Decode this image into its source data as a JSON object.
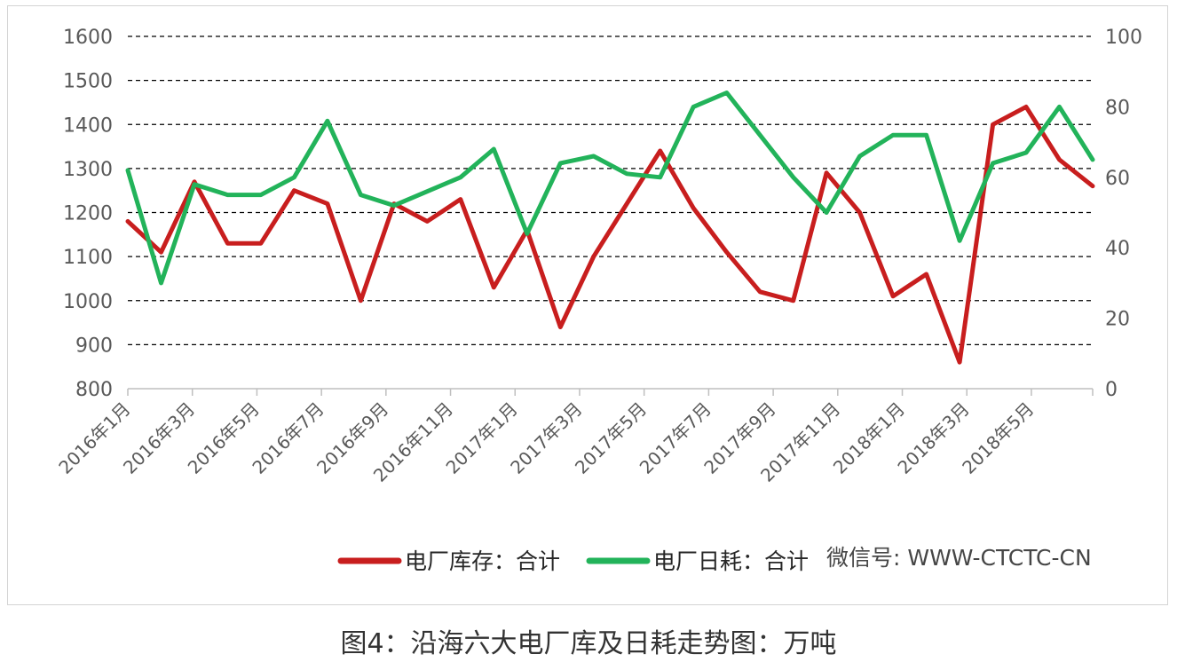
{
  "caption": "图4：沿海六大电厂库及日耗走势图：万吨",
  "watermark": "微信号: WWW-CTCTC-CN",
  "colors": {
    "stock": "#c81e1e",
    "consumption": "#22b35a",
    "grid": "#000000",
    "axis": "#bfbfbf"
  },
  "chart_data": {
    "type": "line",
    "title": "",
    "xlabel": "",
    "ylabel": "",
    "grid": true,
    "legend_position": "bottom",
    "y_left": {
      "min": 800,
      "max": 1600,
      "ticks": [
        800,
        900,
        1000,
        1100,
        1200,
        1300,
        1400,
        1500,
        1600
      ]
    },
    "y_right": {
      "min": 0,
      "max": 100,
      "ticks": [
        0,
        20,
        40,
        60,
        80,
        100
      ]
    },
    "x_tick_labels": [
      "2016年1月",
      "2016年3月",
      "2016年5月",
      "2016年7月",
      "2016年9月",
      "2016年11月",
      "2017年1月",
      "2017年3月",
      "2017年5月",
      "2017年7月",
      "2017年9月",
      "2017年11月",
      "2018年1月",
      "2018年3月",
      "2018年5月"
    ],
    "x_start": "2016-01",
    "x_end": "2018-06",
    "series": [
      {
        "name": "电厂库存：合计",
        "axis": "left",
        "color": "#c81e1e",
        "x": [
          "2016-01",
          "2016-02",
          "2016-03",
          "2016-04",
          "2016-05",
          "2016-06",
          "2016-07",
          "2016-08",
          "2016-09",
          "2016-10",
          "2016-11",
          "2016-12",
          "2017-01",
          "2017-02",
          "2017-03",
          "2017-04",
          "2017-05",
          "2017-06",
          "2017-07",
          "2017-08",
          "2017-09",
          "2017-10",
          "2017-11",
          "2017-12",
          "2018-01",
          "2018-02",
          "2018-03",
          "2018-04",
          "2018-05",
          "2018-06"
        ],
        "values": [
          1180,
          1110,
          1270,
          1130,
          1130,
          1250,
          1220,
          1000,
          1220,
          1180,
          1230,
          1030,
          1160,
          940,
          1100,
          1220,
          1340,
          1210,
          1110,
          1020,
          1000,
          1290,
          1200,
          1010,
          1060,
          860,
          1400,
          1440,
          1320,
          1260
        ]
      },
      {
        "name": "电厂日耗：合计",
        "axis": "right",
        "color": "#22b35a",
        "x": [
          "2016-01",
          "2016-02",
          "2016-03",
          "2016-04",
          "2016-05",
          "2016-06",
          "2016-07",
          "2016-08",
          "2016-09",
          "2016-10",
          "2016-11",
          "2016-12",
          "2017-01",
          "2017-02",
          "2017-03",
          "2017-04",
          "2017-05",
          "2017-06",
          "2017-07",
          "2017-08",
          "2017-09",
          "2017-10",
          "2017-11",
          "2017-12",
          "2018-01",
          "2018-02",
          "2018-03",
          "2018-04",
          "2018-05",
          "2018-06"
        ],
        "values": [
          62,
          30,
          58,
          55,
          55,
          60,
          76,
          55,
          52,
          56,
          60,
          68,
          44,
          64,
          66,
          61,
          60,
          80,
          84,
          72,
          60,
          50,
          66,
          72,
          72,
          42,
          64,
          67,
          80,
          65
        ]
      }
    ]
  }
}
